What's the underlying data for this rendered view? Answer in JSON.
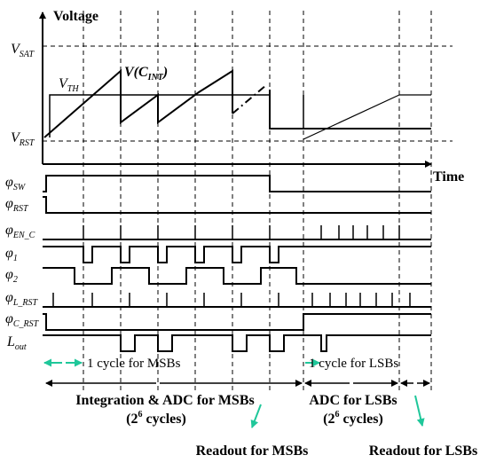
{
  "axis": {
    "y_label": "Voltage",
    "x_label": "Time"
  },
  "levels": {
    "vsat": {
      "main": "V",
      "sub": "SAT"
    },
    "vth": {
      "main": "V",
      "sub": "TH"
    },
    "vrst": {
      "main": "V",
      "sub": "RST"
    },
    "vcint": "V(C",
    "vcint_sub": "INT",
    "vcint_close": ")"
  },
  "signals": [
    {
      "main": "φ",
      "sub": "SW"
    },
    {
      "main": "φ",
      "sub": "RST"
    },
    {
      "main": "φ",
      "sub": "EN_C"
    },
    {
      "main": "φ",
      "sub": "1"
    },
    {
      "main": "φ",
      "sub": "2"
    },
    {
      "main": "φ",
      "sub": "L_RST"
    },
    {
      "main": "φ",
      "sub": "C_RST"
    },
    {
      "main": "L",
      "sub": "out"
    }
  ],
  "annotations": {
    "cycle_msb": "1 cycle for MSBs",
    "cycle_lsb": "1 cycle for LSBs",
    "phase_msb": "Integration & ADC for MSBs",
    "phase_msb_cycles": "(2",
    "phase_msb_cycles_exp": "6",
    "phase_msb_cycles_end": " cycles)",
    "phase_lsb": "ADC for LSBs",
    "phase_lsb_cycles": "(2",
    "phase_lsb_cycles_exp": "6",
    "phase_lsb_cycles_end": " cycles)",
    "readout_msb": "Readout for MSBs",
    "readout_lsb": "Readout for LSBs"
  },
  "colors": {
    "arrow": "#1fc79a",
    "line": "#000000"
  }
}
